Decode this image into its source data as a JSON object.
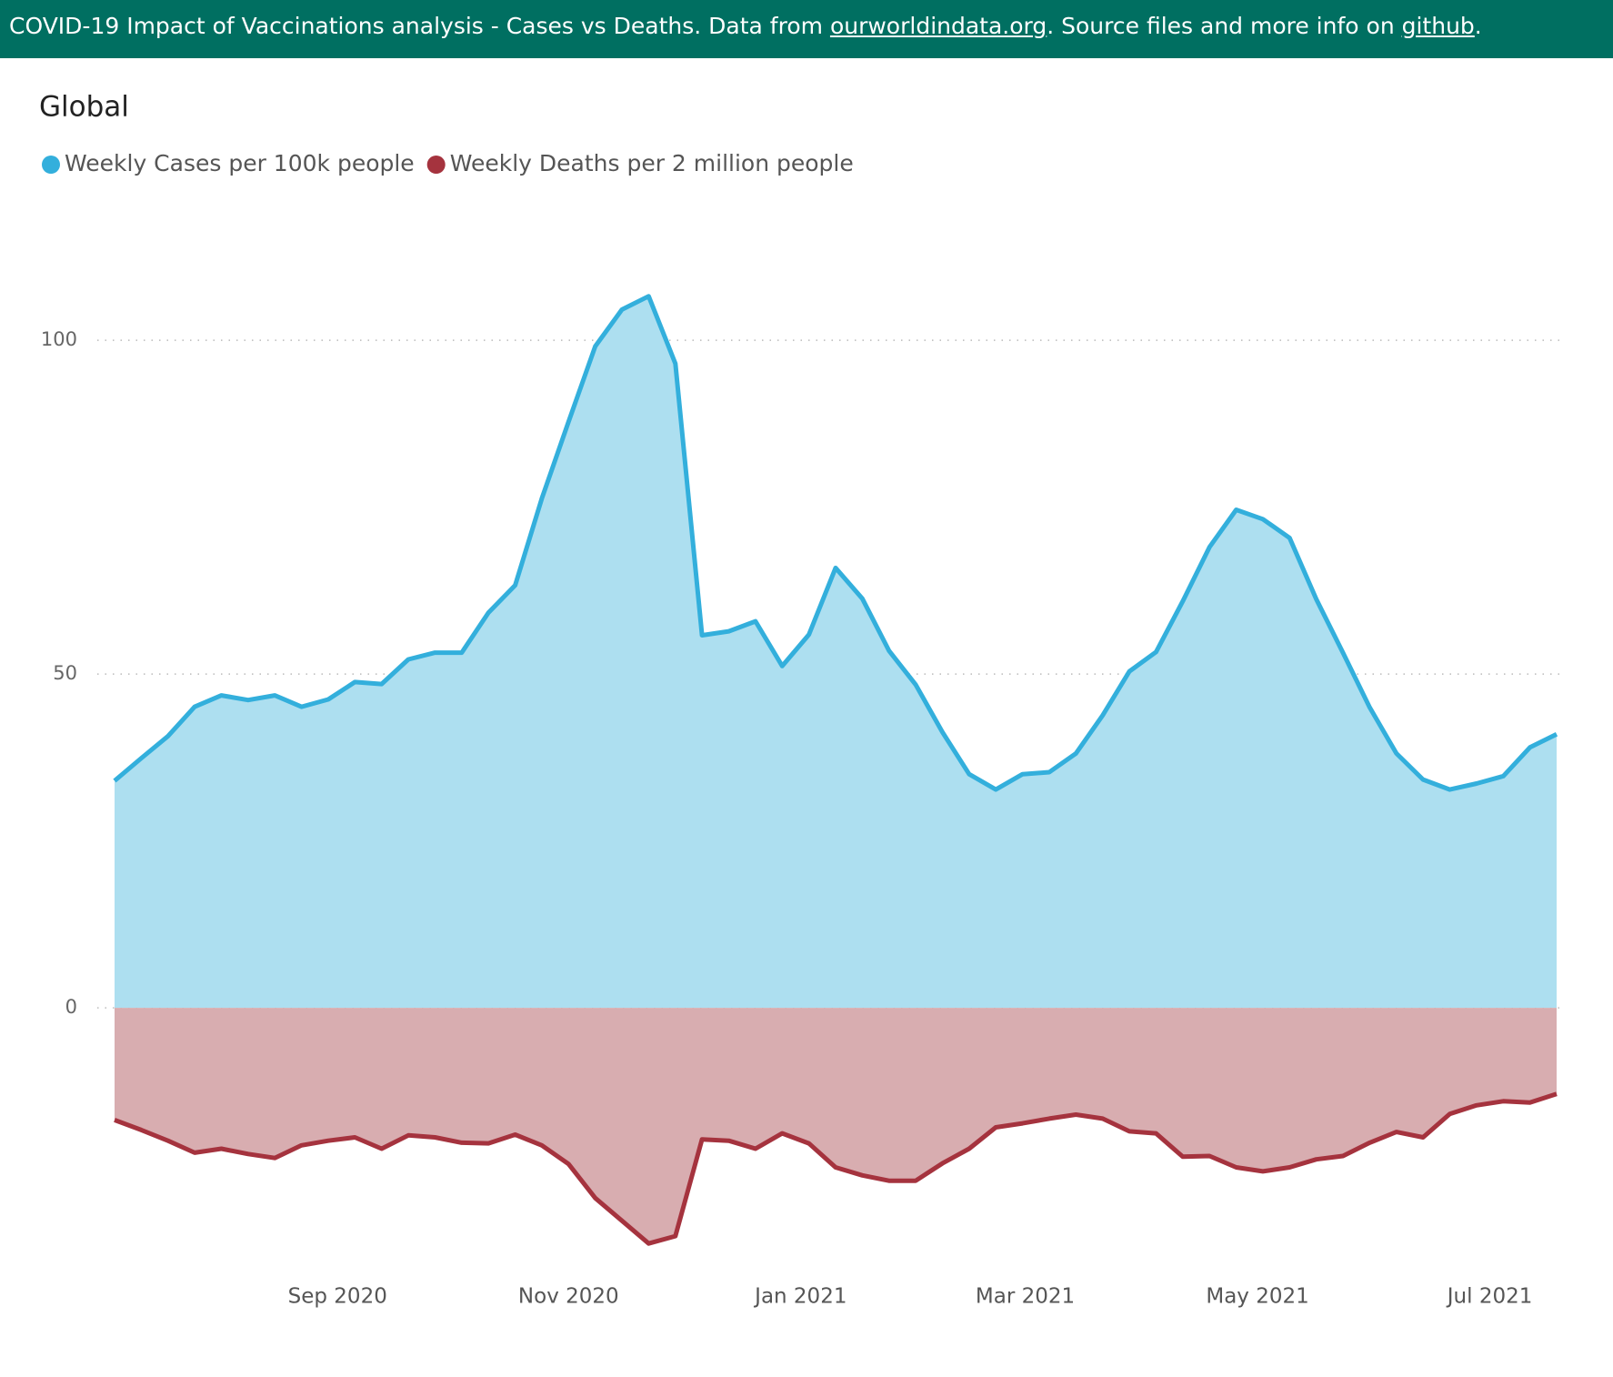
{
  "header": {
    "parts": [
      "COVID-19 Impact of Vaccinations analysis - Cases vs Deaths. Data from ",
      "ourworldindata.org",
      ". Source files and more info on ",
      "github",
      "."
    ]
  },
  "chart_data": {
    "type": "area",
    "title": "Global",
    "series": [
      {
        "name": "Weekly Cases per 100k people",
        "color": "#33afdc",
        "fill": "#addff0",
        "values": [
          34.0,
          37.4,
          40.7,
          45.1,
          46.8,
          46.1,
          46.8,
          45.1,
          46.2,
          48.8,
          48.5,
          52.2,
          53.2,
          53.2,
          59.2,
          63.3,
          76.3,
          87.8,
          99.1,
          104.6,
          106.6,
          96.5,
          55.8,
          56.4,
          57.9,
          51.2,
          55.9,
          65.9,
          61.3,
          53.5,
          48.4,
          41.3,
          35.0,
          32.7,
          35.0,
          35.3,
          38.1,
          43.8,
          50.4,
          53.3,
          60.9,
          69.0,
          74.6,
          73.2,
          70.4,
          61.2,
          53.2,
          45.0,
          38.1,
          34.2,
          32.7,
          33.6,
          34.7,
          39.0,
          41.0
        ]
      },
      {
        "name": "Weekly Deaths per 2 million people",
        "color": "#a5333e",
        "fill": "#d8adb0",
        "values": [
          -16.8,
          -18.3,
          -19.9,
          -21.7,
          -21.1,
          -21.9,
          -22.5,
          -20.6,
          -19.9,
          -19.4,
          -21.1,
          -19.1,
          -19.4,
          -20.2,
          -20.3,
          -19.0,
          -20.6,
          -23.4,
          -28.5,
          -31.9,
          -35.3,
          -34.2,
          -19.7,
          -19.9,
          -21.1,
          -18.8,
          -20.3,
          -23.9,
          -25.1,
          -25.9,
          -25.9,
          -23.3,
          -21.1,
          -17.9,
          -17.3,
          -16.6,
          -16.0,
          -16.6,
          -18.5,
          -18.8,
          -22.3,
          -22.2,
          -23.9,
          -24.5,
          -23.9,
          -22.7,
          -22.2,
          -20.2,
          -18.6,
          -19.4,
          -15.9,
          -14.6,
          -14.0,
          -14.2,
          -12.9
        ]
      }
    ],
    "xlim": [
      0,
      54
    ],
    "xticks": [
      {
        "value": 8.35,
        "label": "Sep 2020"
      },
      {
        "value": 17.0,
        "label": "Nov 2020"
      },
      {
        "value": 25.7,
        "label": "Jan 2021"
      },
      {
        "value": 34.1,
        "label": "Mar 2021"
      },
      {
        "value": 42.8,
        "label": "May 2021"
      },
      {
        "value": 51.5,
        "label": "Jul 2021"
      }
    ],
    "ylim": [
      -38,
      118
    ],
    "yticks": [
      0,
      50,
      100
    ],
    "grid": true
  }
}
